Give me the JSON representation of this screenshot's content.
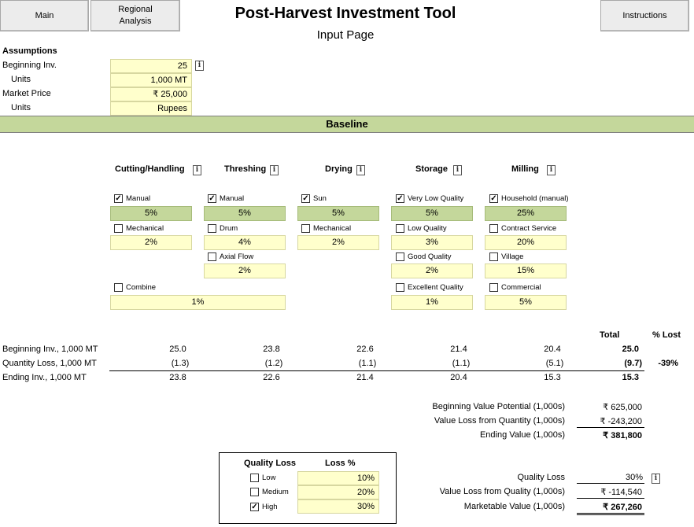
{
  "toolbar": {
    "main_label": "Main",
    "regional_label_line1": "Regional",
    "regional_label_line2": "Analysis",
    "instructions_label": "Instructions"
  },
  "header": {
    "title": "Post-Harvest Investment Tool",
    "subtitle": "Input Page"
  },
  "assumptions": {
    "heading": "Assumptions",
    "beginning_inv_label": "Beginning Inv.",
    "beginning_inv_value": "25",
    "units_label_1": "Units",
    "units_value_1": "1,000 MT",
    "market_price_label": "Market Price",
    "market_price_value": "₹ 25,000",
    "units_label_2": "Units",
    "units_value_2": "Rupees"
  },
  "baseline": {
    "title": "Baseline",
    "columns": [
      {
        "head": "Cutting/Handling",
        "options": [
          {
            "label": "Manual",
            "checked": true,
            "value": "5%"
          },
          {
            "label": "Mechanical",
            "checked": false,
            "value": "2%"
          },
          {
            "label": "Combine",
            "checked": false,
            "value": "1%"
          }
        ]
      },
      {
        "head": "Threshing",
        "options": [
          {
            "label": "Manual",
            "checked": true,
            "value": "5%"
          },
          {
            "label": "Drum",
            "checked": false,
            "value": "4%"
          },
          {
            "label": "Axial Flow",
            "checked": false,
            "value": "2%"
          }
        ]
      },
      {
        "head": "Drying",
        "options": [
          {
            "label": "Sun",
            "checked": true,
            "value": "5%"
          },
          {
            "label": "Mechanical",
            "checked": false,
            "value": "2%"
          }
        ]
      },
      {
        "head": "Storage",
        "options": [
          {
            "label": "Very Low Quality",
            "checked": true,
            "value": "5%"
          },
          {
            "label": "Low Quality",
            "checked": false,
            "value": "3%"
          },
          {
            "label": "Good Quality",
            "checked": false,
            "value": "2%"
          },
          {
            "label": "Excellent Quality",
            "checked": false,
            "value": "1%"
          }
        ]
      },
      {
        "head": "Milling",
        "options": [
          {
            "label": "Household (manual)",
            "checked": true,
            "value": "25%"
          },
          {
            "label": "Contract Service",
            "checked": false,
            "value": "20%"
          },
          {
            "label": "Village",
            "checked": false,
            "value": "15%"
          },
          {
            "label": "Commercial",
            "checked": false,
            "value": "5%"
          }
        ]
      }
    ],
    "check_mark": "✓",
    "total_head": "Total",
    "pct_lost_head": "% Lost",
    "rows": [
      {
        "label": "Beginning Inv., 1,000 MT",
        "values": [
          "25.0",
          "23.8",
          "22.6",
          "21.4",
          "20.4"
        ],
        "total": "25.0",
        "pct": ""
      },
      {
        "label": "Quantity Loss, 1,000 MT",
        "values": [
          "(1.3)",
          "(1.2)",
          "(1.1)",
          "(1.1)",
          "(5.1)"
        ],
        "total": "(9.7)",
        "pct": "-39%"
      },
      {
        "label": "Ending Inv.,  1,000 MT",
        "values": [
          "23.8",
          "22.6",
          "21.4",
          "20.4",
          "15.3"
        ],
        "total": "15.3",
        "pct": ""
      }
    ],
    "value_summary": {
      "beginning_label": "Beginning Value Potential (1,000s)",
      "beginning_value": "₹ 625,000",
      "qty_loss_label": "Value Loss from Quantity (1,000s)",
      "qty_loss_value": "₹ -243,200",
      "ending_label": "Ending Value (1,000s)",
      "ending_value": "₹ 381,800"
    },
    "quality_table": {
      "head_quality": "Quality Loss",
      "head_loss": "Loss %",
      "rows": [
        {
          "label": "Low",
          "checked": false,
          "value": "10%"
        },
        {
          "label": "Medium",
          "checked": false,
          "value": "20%"
        },
        {
          "label": "High",
          "checked": true,
          "value": "30%"
        }
      ]
    },
    "quality_summary": {
      "quality_loss_label": "Quality  Loss",
      "quality_loss_value": "30%",
      "value_loss_label": "Value Loss from Quality (1,000s)",
      "value_loss_value": "₹ -114,540",
      "marketable_label": "Marketable Value (1,000s)",
      "marketable_value": "₹ 267,260"
    },
    "info_glyph": "i"
  }
}
